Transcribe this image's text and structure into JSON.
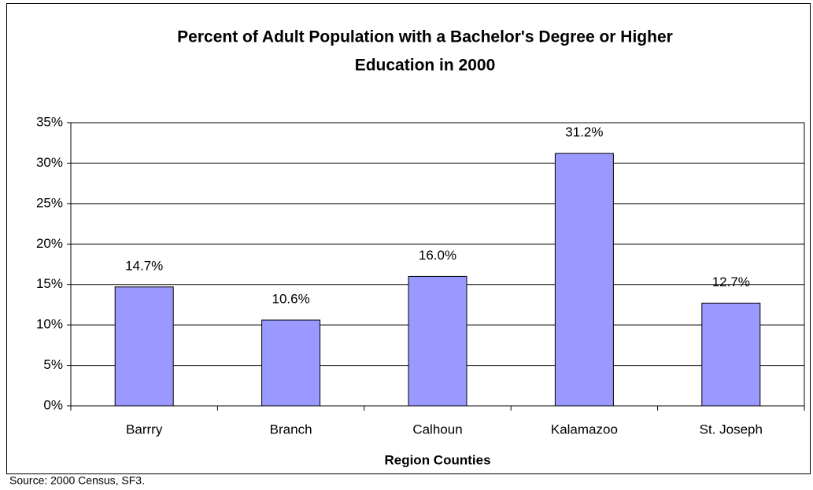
{
  "chart_data": {
    "type": "bar",
    "title": [
      "Percent of Adult Population with a Bachelor's Degree or Higher",
      "Education in 2000"
    ],
    "x_label": "Region Counties",
    "categories": [
      "Barrry",
      "Branch",
      "Calhoun",
      "Kalamazoo",
      "St. Joseph"
    ],
    "values": [
      14.7,
      10.6,
      16.0,
      31.2,
      12.7
    ],
    "value_labels": [
      "14.7%",
      "10.6%",
      "16.0%",
      "31.2%",
      "12.7%"
    ],
    "color": "#9999ff",
    "ylim": [
      0,
      35
    ],
    "yticks": [
      {
        "value": 0,
        "label": "0%"
      },
      {
        "value": 5,
        "label": "5%"
      },
      {
        "value": 10,
        "label": "10%"
      },
      {
        "value": 15,
        "label": "15%"
      },
      {
        "value": 20,
        "label": "20%"
      },
      {
        "value": 25,
        "label": "25%"
      },
      {
        "value": 30,
        "label": "30%"
      },
      {
        "value": 35,
        "label": "35%"
      }
    ],
    "grid": true,
    "source": "Source: 2000 Census, SF3."
  }
}
